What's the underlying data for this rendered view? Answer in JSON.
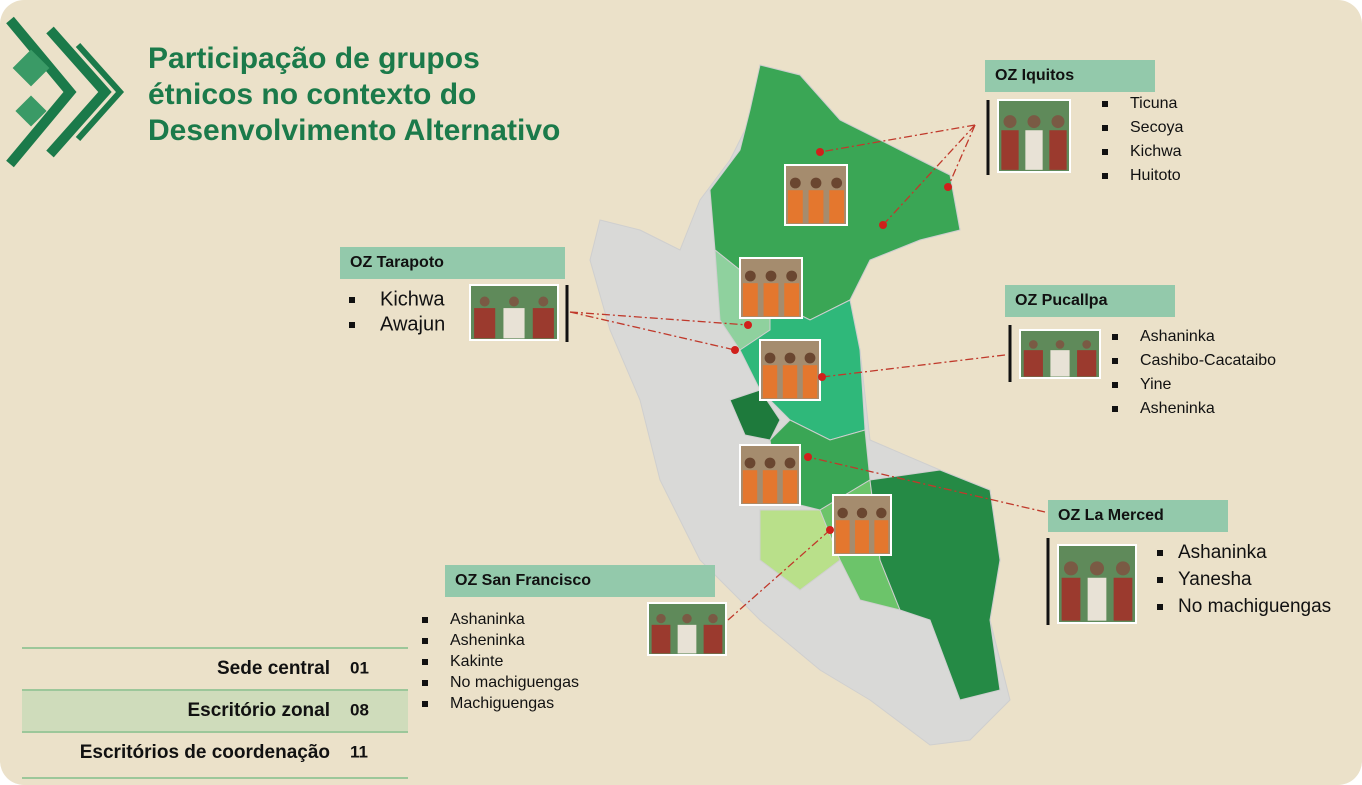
{
  "title": [
    "Participação de grupos",
    "étnicos no contexto do",
    "Desenvolvimento Alternativo"
  ],
  "offices": [
    {
      "name": "OZ Iquitos",
      "groups": [
        "Ticuna",
        "Secoya",
        "Kichwa",
        "Huitoto"
      ]
    },
    {
      "name": "OZ Tarapoto",
      "groups": [
        "Kichwa",
        "Awajun"
      ]
    },
    {
      "name": "OZ Pucallpa",
      "groups": [
        "Ashaninka",
        "Cashibo-Cacataibo",
        "Yine",
        "Asheninka"
      ]
    },
    {
      "name": "OZ La Merced",
      "groups": [
        "Ashaninka",
        "Yanesha",
        "No machiguengas"
      ]
    },
    {
      "name": "OZ San Francisco",
      "groups": [
        "Ashaninka",
        "Asheninka",
        "Kakinte",
        "No machiguengas",
        "Machiguengas"
      ]
    }
  ],
  "summary": [
    {
      "label": "Sede central",
      "value": "01"
    },
    {
      "label": "Escritório zonal",
      "value": "08"
    },
    {
      "label": "Escritórios de coordenação",
      "value": "11"
    }
  ]
}
